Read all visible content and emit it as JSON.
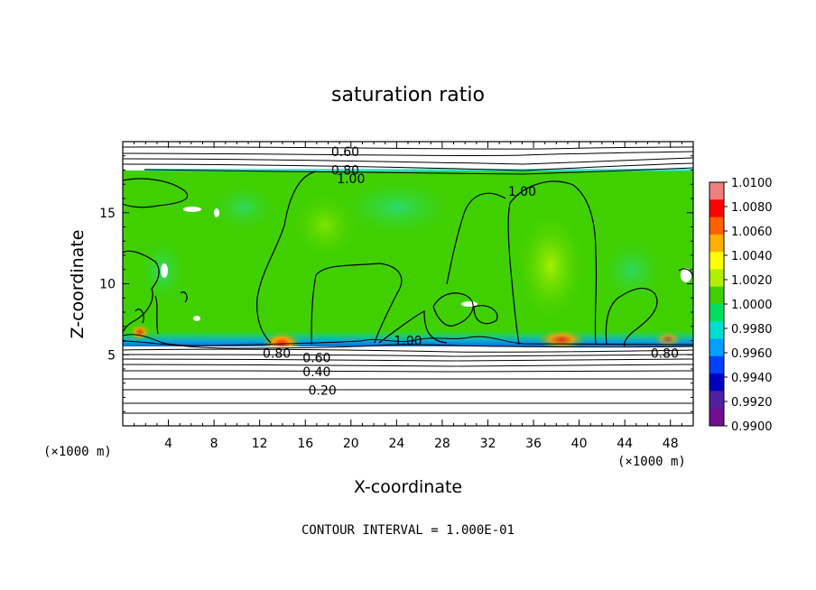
{
  "chart_data": {
    "type": "heatmap",
    "title": "saturation ratio",
    "xlabel": "X-coordinate",
    "ylabel": "Z-coordinate",
    "x_unit_label_left": "(×1000 m)",
    "x_unit_label_right": "(×1000 m)",
    "xlim": [
      0,
      50
    ],
    "ylim": [
      0,
      20
    ],
    "x_ticks": [
      4,
      8,
      12,
      16,
      20,
      24,
      28,
      32,
      36,
      40,
      44,
      48
    ],
    "y_ticks": [
      5,
      10,
      15
    ],
    "grid": false,
    "colorbar": {
      "placement": "right",
      "labels": [
        "1.0100",
        "1.0080",
        "1.0060",
        "1.0040",
        "1.0020",
        "1.0000",
        "0.9980",
        "0.9960",
        "0.9940",
        "0.9920",
        "0.9900"
      ],
      "colors": [
        "#f08080",
        "#ff0000",
        "#ff6000",
        "#ffb000",
        "#ffff00",
        "#b0f000",
        "#40d000",
        "#00e060",
        "#00e0d0",
        "#00a0ff",
        "#0040ff",
        "#0000c0",
        "#5020a0",
        "#701090"
      ]
    },
    "contour_interval": "CONTOUR INTERVAL = 1.000E-01",
    "contour_labels": [
      {
        "text": "0.60",
        "x": 19.5,
        "z": 19.3
      },
      {
        "text": "0.80",
        "x": 19.5,
        "z": 18.0
      },
      {
        "text": "1.00",
        "x": 20.0,
        "z": 17.4
      },
      {
        "text": "1.00",
        "x": 35.0,
        "z": 16.5
      },
      {
        "text": "1.00",
        "x": 25.0,
        "z": 6.0
      },
      {
        "text": "0.80",
        "x": 13.5,
        "z": 5.1
      },
      {
        "text": "0.60",
        "x": 17.0,
        "z": 4.8
      },
      {
        "text": "0.40",
        "x": 17.0,
        "z": 3.8
      },
      {
        "text": "0.20",
        "x": 17.5,
        "z": 2.5
      },
      {
        "text": "0.80",
        "x": 47.5,
        "z": 5.1
      }
    ]
  }
}
